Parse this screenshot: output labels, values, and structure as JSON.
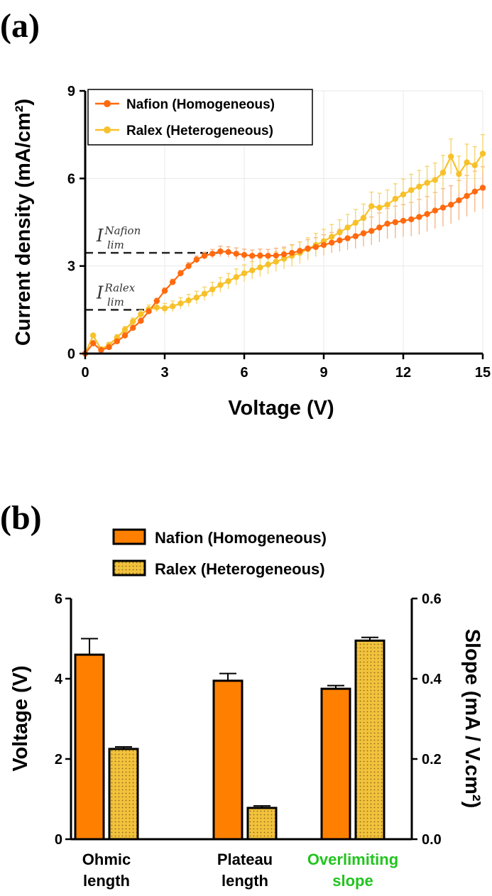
{
  "figure_a": {
    "panel_label": "(a)",
    "annotations": [
      {
        "main": "I",
        "sup": "Nafion",
        "sub": "lim",
        "y": 3.45,
        "x_end": 5.0
      },
      {
        "main": "I",
        "sup": "Ralex",
        "sub": "lim",
        "y": 1.5,
        "x_end": 2.5
      }
    ]
  },
  "figure_b": {
    "panel_label": "(b)"
  },
  "colors": {
    "nafion": "#ff6a0f",
    "nafion_err": "#f7b07f",
    "ralex": "#f7c12a",
    "ralex_err": "#f5d466",
    "nafion_bar": "#ff8000",
    "ralex_bar": "#f2c23c",
    "green_axis": "#22c41f"
  },
  "chart_data": [
    {
      "type": "line",
      "xlabel": "Voltage (V)",
      "ylabel": "Current density (mA/cm²)",
      "xlim": [
        0,
        15
      ],
      "ylim": [
        0,
        9
      ],
      "xticks": [
        0,
        3,
        6,
        9,
        12,
        15
      ],
      "yticks": [
        0,
        3,
        6,
        9
      ],
      "grid": true,
      "legend": "top-left",
      "series": [
        {
          "name": "Nafion (Homogeneous)",
          "x": [
            0,
            0.3,
            0.6,
            0.9,
            1.2,
            1.5,
            1.8,
            2.1,
            2.4,
            2.7,
            3.0,
            3.3,
            3.6,
            3.9,
            4.2,
            4.5,
            4.8,
            5.1,
            5.4,
            5.7,
            6.0,
            6.3,
            6.6,
            6.9,
            7.2,
            7.5,
            7.8,
            8.1,
            8.4,
            8.7,
            9.0,
            9.3,
            9.6,
            9.9,
            10.2,
            10.5,
            10.8,
            11.1,
            11.4,
            11.7,
            12.0,
            12.3,
            12.6,
            12.9,
            13.2,
            13.5,
            13.8,
            14.1,
            14.4,
            14.7,
            15.0
          ],
          "y": [
            0.0,
            0.35,
            0.12,
            0.22,
            0.42,
            0.62,
            0.88,
            1.12,
            1.45,
            1.8,
            2.15,
            2.45,
            2.75,
            3.0,
            3.22,
            3.35,
            3.42,
            3.5,
            3.48,
            3.42,
            3.38,
            3.35,
            3.36,
            3.35,
            3.36,
            3.4,
            3.45,
            3.52,
            3.6,
            3.65,
            3.72,
            3.8,
            3.88,
            3.95,
            4.02,
            4.12,
            4.2,
            4.32,
            4.45,
            4.5,
            4.55,
            4.6,
            4.68,
            4.78,
            4.9,
            5.0,
            5.1,
            5.25,
            5.4,
            5.55,
            5.68
          ],
          "error": [
            0.02,
            0.1,
            0.05,
            0.06,
            0.08,
            0.1,
            0.1,
            0.1,
            0.1,
            0.1,
            0.1,
            0.1,
            0.1,
            0.12,
            0.12,
            0.12,
            0.15,
            0.18,
            0.18,
            0.2,
            0.2,
            0.2,
            0.22,
            0.22,
            0.25,
            0.25,
            0.28,
            0.3,
            0.3,
            0.32,
            0.35,
            0.35,
            0.38,
            0.4,
            0.42,
            0.45,
            0.48,
            0.5,
            0.52,
            0.55,
            0.55,
            0.58,
            0.6,
            0.6,
            0.62,
            0.65,
            0.65,
            0.68,
            0.7,
            0.7,
            0.72
          ]
        },
        {
          "name": "Ralex (Heterogeneous)",
          "x": [
            0,
            0.3,
            0.6,
            0.9,
            1.2,
            1.5,
            1.8,
            2.1,
            2.4,
            2.7,
            3.0,
            3.3,
            3.6,
            3.9,
            4.2,
            4.5,
            4.8,
            5.1,
            5.4,
            5.7,
            6.0,
            6.3,
            6.6,
            6.9,
            7.2,
            7.5,
            7.8,
            8.1,
            8.4,
            8.7,
            9.0,
            9.3,
            9.6,
            9.9,
            10.2,
            10.5,
            10.8,
            11.1,
            11.4,
            11.7,
            12.0,
            12.3,
            12.6,
            12.9,
            13.2,
            13.5,
            13.8,
            14.1,
            14.4,
            14.7,
            15.0
          ],
          "y": [
            0.0,
            0.62,
            0.15,
            0.3,
            0.55,
            0.82,
            1.1,
            1.35,
            1.52,
            1.58,
            1.55,
            1.62,
            1.72,
            1.82,
            1.92,
            2.05,
            2.2,
            2.35,
            2.48,
            2.62,
            2.75,
            2.85,
            2.95,
            3.05,
            3.15,
            3.25,
            3.35,
            3.45,
            3.58,
            3.72,
            3.85,
            4.0,
            4.15,
            4.32,
            4.48,
            4.65,
            5.05,
            5.0,
            5.1,
            5.3,
            5.45,
            5.6,
            5.72,
            5.85,
            5.95,
            6.2,
            6.75,
            6.15,
            6.55,
            6.45,
            6.85
          ]
        }
      ]
    },
    {
      "type": "bar",
      "categories": [
        "Ohmic\nlength",
        "Plateau\nlength",
        "Overlimiting\nslope"
      ],
      "ylabel": "Voltage (V)",
      "ylim": [
        0,
        6
      ],
      "yticks": [
        0,
        2,
        4,
        6
      ],
      "y2label": "Slope (mA / V.cm²)",
      "y2lim": [
        0,
        0.6
      ],
      "y2ticks": [
        "0.0",
        "0.2",
        "0.4",
        "0.6"
      ],
      "legend": "top",
      "series": [
        {
          "name": "Nafion (Homogeneous)",
          "values": [
            4.6,
            3.95,
            0.375
          ],
          "errors": [
            0.4,
            0.18,
            0.008
          ],
          "axis": [
            "left",
            "left",
            "right"
          ]
        },
        {
          "name": "Ralex (Heterogeneous)",
          "values": [
            2.25,
            0.78,
            0.495
          ],
          "errors": [
            0.05,
            0.05,
            0.008
          ],
          "axis": [
            "left",
            "left",
            "right"
          ]
        }
      ]
    }
  ]
}
